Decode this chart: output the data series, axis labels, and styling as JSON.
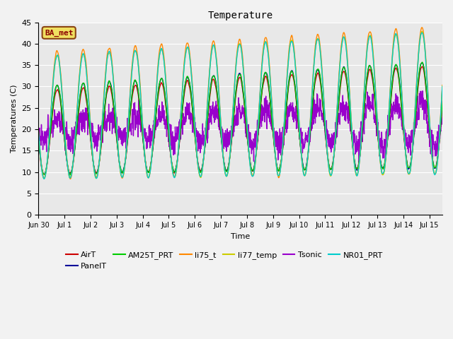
{
  "title": "Temperature",
  "xlabel": "Time",
  "ylabel": "Temperatures (C)",
  "ylim": [
    0,
    45
  ],
  "yticks": [
    0,
    5,
    10,
    15,
    20,
    25,
    30,
    35,
    40,
    45
  ],
  "annotation": "BA_met",
  "fig_bg": "#f2f2f2",
  "plot_bg": "#e8e8e8",
  "series_names": [
    "AirT",
    "PanelT",
    "AM25T_PRT",
    "li75_t",
    "li77_temp",
    "Tsonic",
    "NR01_PRT"
  ],
  "series_colors": [
    "#cc0000",
    "#000099",
    "#00cc00",
    "#ff8800",
    "#cccc00",
    "#9900cc",
    "#00cccc"
  ],
  "n_days": 15.5,
  "xtick_labels": [
    "Jun 30",
    "Jul 1",
    "Jul 2",
    "Jul 3",
    "Jul 4",
    "Jul 5",
    "Jul 6",
    "Jul 7",
    "Jul 8",
    "Jul 9",
    "Jul 10",
    "Jul 11",
    "Jul 12",
    "Jul 13",
    "Jul 14",
    "Jul 15"
  ],
  "xtick_positions": [
    0,
    1,
    2,
    3,
    4,
    5,
    6,
    7,
    8,
    9,
    10,
    11,
    12,
    13,
    14,
    15
  ]
}
